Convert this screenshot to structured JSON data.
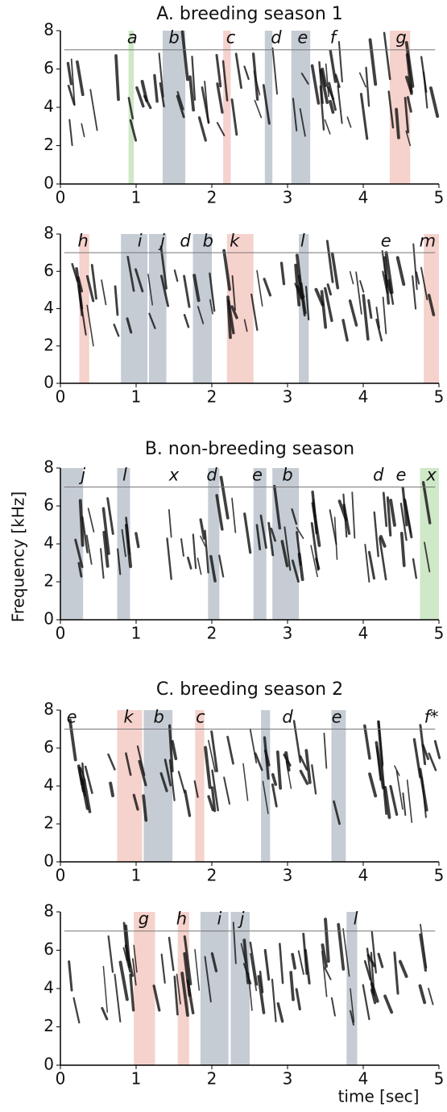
{
  "figure": {
    "y_label": "Frequency [kHz]",
    "x_label": "time [sec]",
    "xticks": [
      "0",
      "1",
      "2",
      "3",
      "4",
      "5"
    ],
    "yticks": [
      "0",
      "2",
      "4",
      "6",
      "8"
    ],
    "panels": [
      {
        "title": "A. breeding season 1",
        "syllables": [
          "a",
          "b",
          "c",
          "d",
          "e",
          "f",
          "g"
        ]
      },
      {
        "syllables": [
          "h",
          "i",
          "j",
          "d",
          "b",
          "k",
          "l",
          "e",
          "m"
        ]
      },
      {
        "title": "B. non-breeding season",
        "syllables": [
          "j",
          "l",
          "x",
          "d",
          "e",
          "b",
          "d",
          "e",
          "x"
        ]
      },
      {
        "title": "C. breeding season 2",
        "syllables": [
          "e",
          "k",
          "b",
          "c",
          "d",
          "e",
          "f*"
        ]
      },
      {
        "syllables": [
          "g",
          "h",
          "i",
          "j",
          "l"
        ]
      }
    ]
  }
}
